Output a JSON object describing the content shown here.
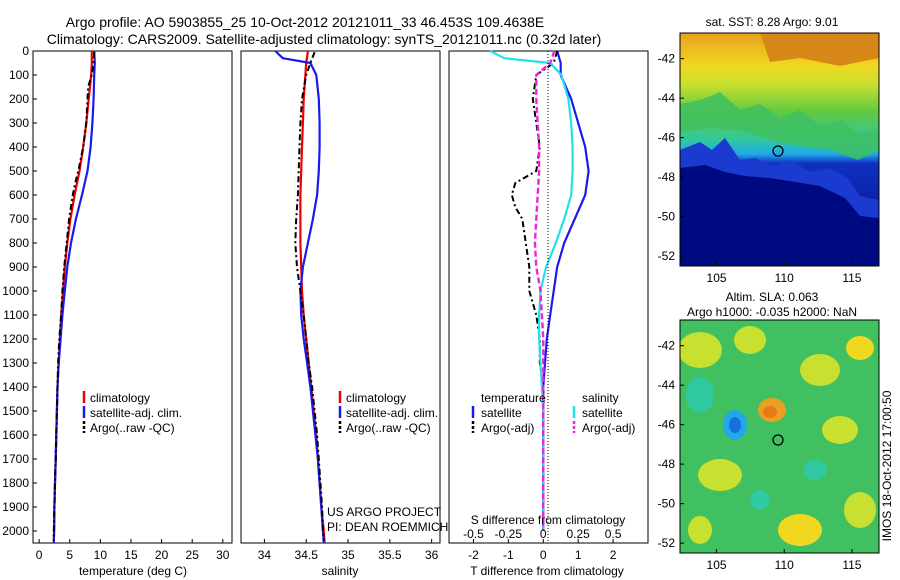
{
  "title": {
    "line1": "Argo profile: AO 5903855_25 10-Oct-2012 20121011_33 46.453S 109.4638E",
    "line2": "Climatology: CARS2009. Satellite-adjusted climatology: synTS_20121011.nc (0.32d later)"
  },
  "colors": {
    "climatology": "#ee0000",
    "satellite": "#1a1aee",
    "argo": "#000000",
    "salinity_satellite": "#22e0e8",
    "salinity_argo": "#ee22dd"
  },
  "depth_axis": {
    "range": [
      0,
      2050
    ],
    "ticks": [
      "0",
      "100",
      "200",
      "300",
      "400",
      "500",
      "600",
      "700",
      "800",
      "900",
      "1000",
      "1100",
      "1200",
      "1300",
      "1400",
      "1500",
      "1600",
      "1700",
      "1800",
      "1900",
      "2000"
    ]
  },
  "legend": {
    "climatology": "climatology",
    "satellite_clim": "satellite-adj. clim.",
    "argo_raw": "Argo(..raw -QC)",
    "temperature": "temperature",
    "salinity": "salinity",
    "satellite": "satellite",
    "argo_adj": "Argo(-adj)"
  },
  "credits": {
    "project": "US ARGO PROJECT",
    "pi": "PI: DEAN ROEMMICH",
    "stamp": "IMOS 18-Oct-2012 17:00:50"
  },
  "maps": {
    "sst_title": "sat. SST: 8.28 Argo: 9.01",
    "sla_title1": "Altim. SLA: 0.063",
    "sla_title2": "Argo h1000: -0.035 h2000: NaN",
    "lat_ticks": [
      "-42",
      "-44",
      "-46",
      "-48",
      "-50",
      "-52"
    ],
    "lon_ticks": [
      "105",
      "110",
      "115"
    ],
    "marker": {
      "lon": 109.46,
      "lat": -46.45
    },
    "lon_range": [
      102.3,
      117
    ],
    "lat_range": [
      -52.5,
      -40.7
    ]
  },
  "chart_data": [
    {
      "type": "line",
      "name": "temperature-profile",
      "xlabel": "temperature (deg C)",
      "ylabel": "",
      "xlim": [
        -1,
        31.5
      ],
      "ylim": [
        2050,
        0
      ],
      "xticks": [
        "0",
        "5",
        "10",
        "15",
        "20",
        "25",
        "30"
      ],
      "series": [
        {
          "name": "climatology",
          "depth": [
            0,
            50,
            100,
            200,
            300,
            400,
            500,
            600,
            700,
            800,
            900,
            1000,
            1100,
            1200,
            1300,
            1400,
            1500,
            1600,
            1700,
            1800,
            1900,
            2000,
            2050
          ],
          "values": [
            8.6,
            8.6,
            8.5,
            8.1,
            7.7,
            7.2,
            6.6,
            5.8,
            5.1,
            4.6,
            4.2,
            3.9,
            3.6,
            3.4,
            3.2,
            3.0,
            2.9,
            2.8,
            2.7,
            2.6,
            2.5,
            2.45,
            2.4
          ]
        },
        {
          "name": "satellite-adj. clim.",
          "depth": [
            0,
            50,
            100,
            200,
            300,
            400,
            500,
            600,
            700,
            800,
            900,
            1000,
            1100,
            1200,
            1300,
            1400,
            1500,
            1600,
            1700,
            1800,
            1900,
            2000,
            2050
          ],
          "values": [
            9.0,
            9.1,
            9.0,
            8.9,
            8.7,
            8.4,
            7.9,
            7.0,
            6.0,
            5.2,
            4.6,
            4.2,
            3.8,
            3.5,
            3.2,
            3.0,
            2.9,
            2.8,
            2.7,
            2.6,
            2.5,
            2.45,
            2.4
          ]
        },
        {
          "name": "Argo(..raw -QC)",
          "depth": [
            5,
            50,
            100,
            150,
            200,
            300,
            400,
            500,
            550,
            600,
            700,
            800,
            900,
            1000,
            1100,
            1200,
            1300,
            1400,
            1500,
            1600,
            1700,
            1800,
            1900,
            2000,
            2040
          ],
          "values": [
            9.0,
            8.9,
            8.6,
            8.0,
            7.9,
            7.7,
            7.2,
            6.4,
            5.9,
            5.5,
            4.9,
            4.5,
            4.1,
            3.8,
            3.6,
            3.3,
            3.1,
            3.0,
            2.9,
            2.8,
            2.7,
            2.6,
            2.5,
            2.4,
            2.4
          ]
        }
      ]
    },
    {
      "type": "line",
      "name": "salinity-profile",
      "xlabel": "salinity",
      "ylabel": "",
      "xlim": [
        33.72,
        36.1
      ],
      "ylim": [
        2050,
        0
      ],
      "xticks": [
        "34",
        "34.5",
        "35",
        "35.5",
        "36"
      ],
      "series": [
        {
          "name": "climatology",
          "depth": [
            0,
            50,
            100,
            200,
            300,
            400,
            500,
            600,
            700,
            800,
            900,
            1000,
            1100,
            1200,
            1300,
            1400,
            1500,
            1600,
            1700,
            1800,
            1900,
            2000,
            2050
          ],
          "values": [
            34.52,
            34.5,
            34.49,
            34.47,
            34.46,
            34.45,
            34.44,
            34.43,
            34.43,
            34.43,
            34.44,
            34.45,
            34.47,
            34.5,
            34.53,
            34.56,
            34.59,
            34.62,
            34.64,
            34.66,
            34.68,
            34.71,
            34.72
          ]
        },
        {
          "name": "satellite-adj. clim.",
          "depth": [
            0,
            30,
            50,
            100,
            200,
            300,
            400,
            500,
            600,
            700,
            800,
            900,
            1000,
            1100,
            1200,
            1300,
            1400,
            1500,
            1600,
            1700,
            1800,
            1900,
            2000,
            2050
          ],
          "values": [
            34.13,
            34.22,
            34.55,
            34.62,
            34.65,
            34.66,
            34.66,
            34.65,
            34.63,
            34.58,
            34.52,
            34.46,
            34.43,
            34.44,
            34.47,
            34.51,
            34.55,
            34.58,
            34.61,
            34.64,
            34.66,
            34.68,
            34.7,
            34.71
          ]
        },
        {
          "name": "Argo(..raw -QC)",
          "depth": [
            5,
            50,
            100,
            200,
            300,
            400,
            500,
            600,
            700,
            800,
            900,
            1000,
            1100,
            1200,
            1300,
            1400,
            1500,
            1600,
            1700,
            1800,
            1900,
            2000,
            2040
          ],
          "values": [
            34.6,
            34.55,
            34.5,
            34.45,
            34.43,
            34.42,
            34.41,
            34.4,
            34.38,
            34.37,
            34.39,
            34.43,
            34.47,
            34.5,
            34.53,
            34.57,
            34.6,
            34.63,
            34.65,
            34.67,
            34.69,
            34.7,
            34.71
          ]
        }
      ]
    },
    {
      "type": "line",
      "name": "difference-profile",
      "xlabel": "T difference from climatology",
      "xlabel_top": "S difference from climatology",
      "ylabel": "",
      "xlim": [
        -2.7,
        3.0
      ],
      "ylim": [
        2050,
        0
      ],
      "xticks": [
        "-2",
        "-1",
        "0",
        "1",
        "2"
      ],
      "xticks_top": [
        "-0.5",
        "-0.25",
        "0",
        "0.25",
        "0.5"
      ],
      "series": [
        {
          "name": "temperature satellite",
          "depth": [
            0,
            50,
            100,
            200,
            300,
            400,
            500,
            600,
            700,
            800,
            900,
            1000,
            1100,
            1200,
            1300,
            1400,
            1500,
            1600,
            1700,
            1800,
            1900,
            2000
          ],
          "values": [
            0.4,
            0.5,
            0.5,
            0.8,
            1.0,
            1.2,
            1.3,
            1.2,
            0.9,
            0.6,
            0.4,
            0.3,
            0.2,
            0.1,
            0.05,
            0.0,
            0.0,
            0.0,
            0.0,
            0.0,
            0.0,
            0.0
          ]
        },
        {
          "name": "temperature Argo(-adj)",
          "depth": [
            0,
            50,
            100,
            200,
            300,
            400,
            500,
            550,
            600,
            650,
            700,
            800,
            900,
            1000,
            1100,
            1200,
            1300,
            1400,
            1500,
            1600,
            1700,
            1800,
            1900,
            2000
          ],
          "values": [
            0.4,
            0.3,
            -0.2,
            -0.3,
            -0.2,
            -0.1,
            -0.2,
            -0.8,
            -0.9,
            -0.8,
            -0.6,
            -0.5,
            -0.4,
            -0.4,
            -0.2,
            -0.1,
            -0.1,
            0.0,
            0.0,
            0.0,
            0.0,
            0.0,
            0.0,
            0.0
          ]
        },
        {
          "name": "salinity satellite",
          "depth": [
            0,
            30,
            50,
            100,
            200,
            300,
            400,
            500,
            600,
            700,
            800,
            900,
            1000,
            1100,
            1200,
            1300,
            1400,
            1500,
            1600,
            1700,
            1800,
            1900,
            2000
          ],
          "values": [
            -0.38,
            -0.28,
            0.05,
            0.13,
            0.18,
            0.2,
            0.21,
            0.21,
            0.2,
            0.15,
            0.09,
            0.02,
            -0.02,
            -0.03,
            -0.03,
            -0.02,
            -0.01,
            0.0,
            0.0,
            0.0,
            0.0,
            0.0,
            0.0
          ]
        },
        {
          "name": "salinity Argo(-adj)",
          "depth": [
            0,
            50,
            100,
            200,
            300,
            400,
            500,
            600,
            700,
            800,
            900,
            1000,
            1100,
            1200,
            1300,
            1400,
            1500,
            1600,
            1700,
            1800,
            1900,
            2000
          ],
          "values": [
            0.08,
            0.05,
            -0.05,
            -0.05,
            -0.04,
            -0.03,
            -0.03,
            -0.04,
            -0.05,
            -0.06,
            -0.05,
            -0.02,
            -0.01,
            0.0,
            0.0,
            0.0,
            0.0,
            0.0,
            0.0,
            0.0,
            0.0,
            0.0
          ]
        }
      ]
    }
  ]
}
